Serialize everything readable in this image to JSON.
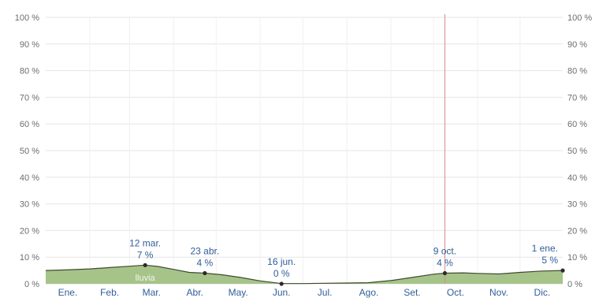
{
  "chart_data": {
    "type": "area",
    "ylim": [
      0,
      100
    ],
    "y_ticks": [
      "0 %",
      "10 %",
      "20 %",
      "30 %",
      "40 %",
      "50 %",
      "60 %",
      "70 %",
      "80 %",
      "90 %",
      "100 %"
    ],
    "months": [
      "Ene.",
      "Feb.",
      "Mar.",
      "Abr.",
      "May.",
      "Jun.",
      "Jul.",
      "Ago.",
      "Set.",
      "Oct.",
      "Nov.",
      "Dic."
    ],
    "x_unit": "day of year",
    "grid": true,
    "current_day_marker": 282,
    "series": [
      {
        "name": "lluvia",
        "color": "#a6c48a",
        "line_color": "#3f4a2f",
        "points": [
          [
            1,
            5
          ],
          [
            15,
            5.2
          ],
          [
            32,
            5.6
          ],
          [
            46,
            6.1
          ],
          [
            60,
            6.6
          ],
          [
            71,
            7
          ],
          [
            80,
            6.5
          ],
          [
            91,
            5.4
          ],
          [
            102,
            4.3
          ],
          [
            113,
            4
          ],
          [
            125,
            3.4
          ],
          [
            138,
            2.4
          ],
          [
            152,
            1.1
          ],
          [
            167,
            0.1
          ],
          [
            182,
            0.1
          ],
          [
            197,
            0.2
          ],
          [
            213,
            0.3
          ],
          [
            228,
            0.4
          ],
          [
            244,
            1.2
          ],
          [
            259,
            2.4
          ],
          [
            274,
            3.6
          ],
          [
            282,
            4
          ],
          [
            295,
            4.1
          ],
          [
            305,
            3.9
          ],
          [
            320,
            3.7
          ],
          [
            335,
            4.3
          ],
          [
            350,
            4.8
          ],
          [
            365,
            5
          ]
        ]
      }
    ],
    "annotations": [
      {
        "day": 71,
        "date": "12 mar.",
        "value": "7 %",
        "y": 7
      },
      {
        "day": 113,
        "date": "23 abr.",
        "value": "4 %",
        "y": 4
      },
      {
        "day": 167,
        "date": "16 jun.",
        "value": "0 %",
        "y": 0
      },
      {
        "day": 282,
        "date": "9 oct.",
        "value": "4 %",
        "y": 4
      },
      {
        "day": 365,
        "date": "1 ene.",
        "value": "5 %",
        "y": 5
      }
    ]
  }
}
